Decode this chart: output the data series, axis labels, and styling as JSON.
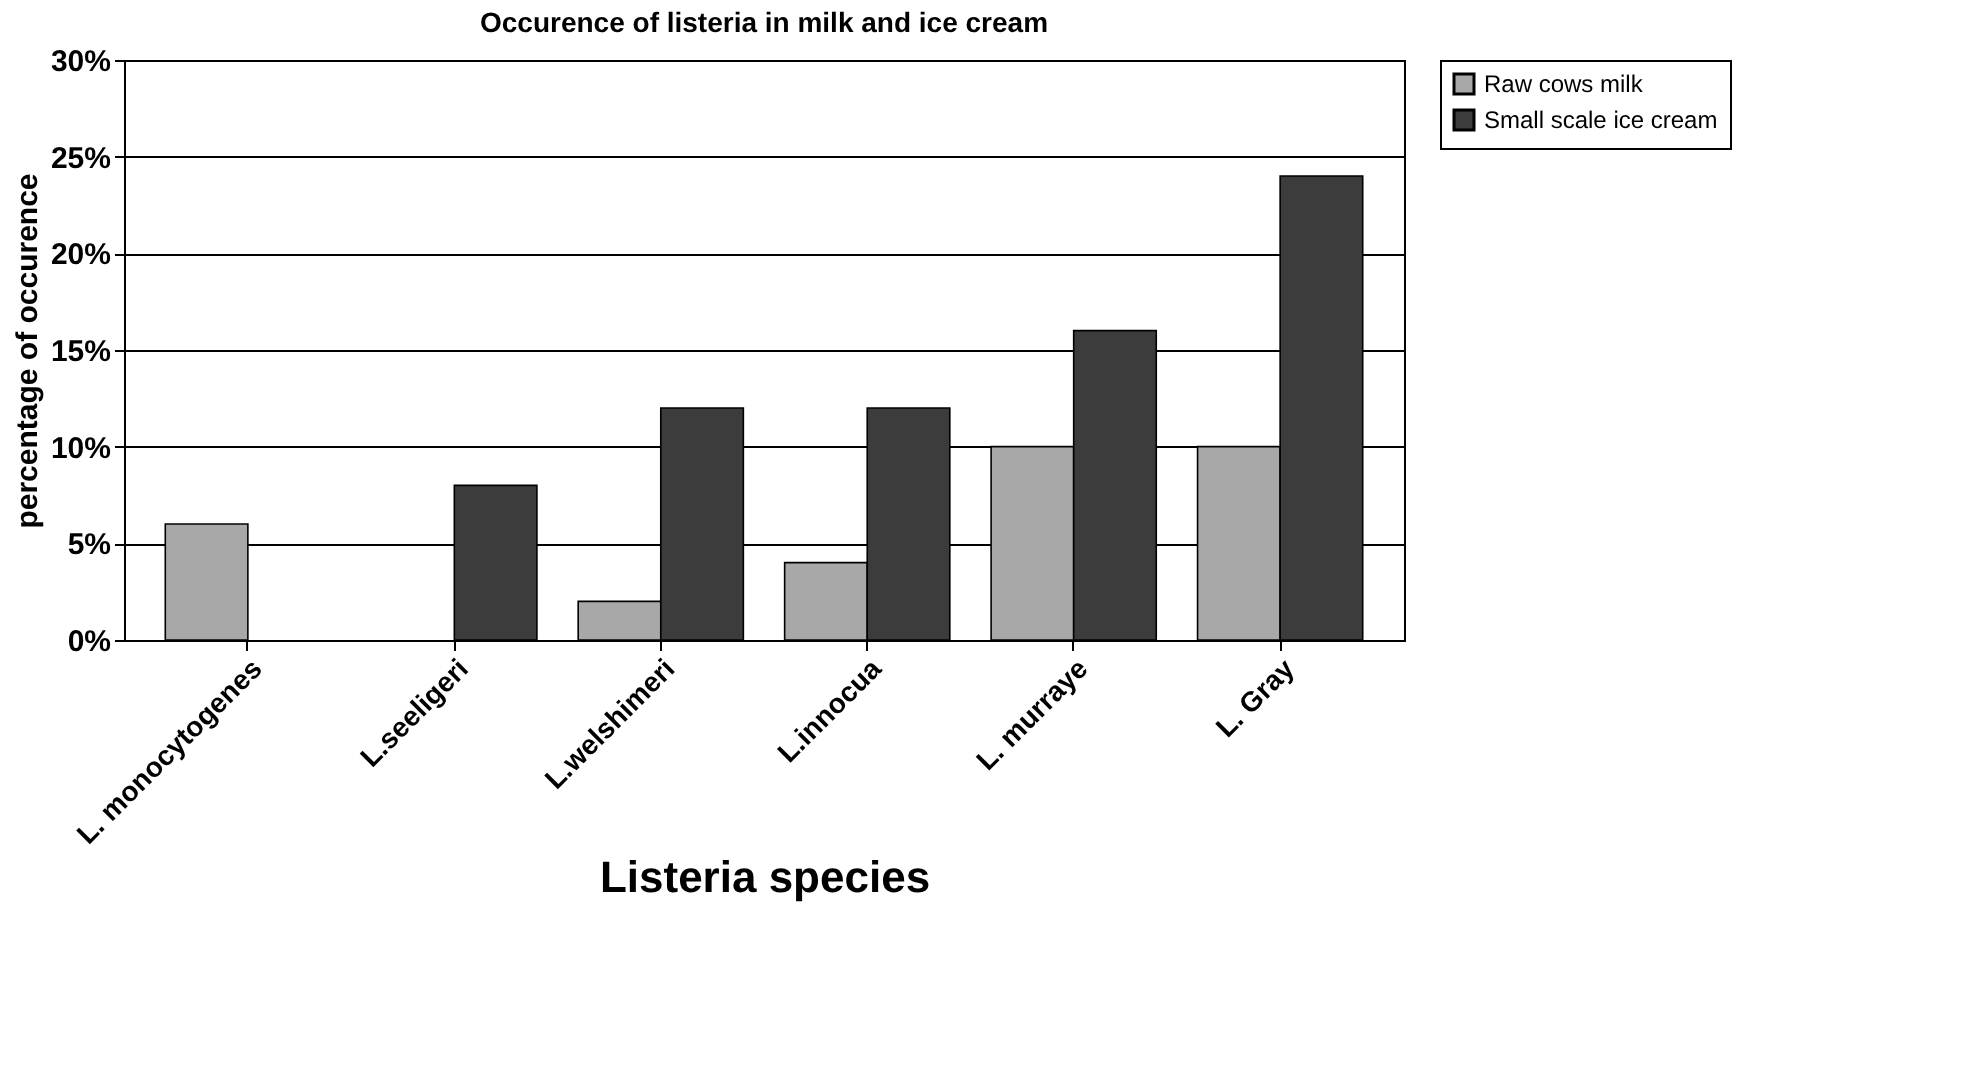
{
  "chart_data": {
    "type": "bar",
    "title": "Occurence of listeria in milk and ice cream",
    "xlabel": "Listeria species",
    "ylabel": "percentage of occurence",
    "categories": [
      "L. monocytogenes",
      "L.seeligeri",
      "L.welshimeri",
      "L.innocua",
      "L. murraye",
      "L. Gray"
    ],
    "series": [
      {
        "name": "Raw cows milk",
        "color": "#a8a8a8",
        "values": [
          6,
          null,
          2,
          4,
          10,
          10
        ]
      },
      {
        "name": "Small scale ice cream",
        "color": "#3c3c3c",
        "values": [
          null,
          8,
          12,
          12,
          16,
          24
        ]
      }
    ],
    "ylim": [
      0,
      30
    ],
    "yticks": [
      {
        "value": 0,
        "label": "0%"
      },
      {
        "value": 5,
        "label": "5%"
      },
      {
        "value": 10,
        "label": "10%"
      },
      {
        "value": 15,
        "label": "15%"
      },
      {
        "value": 20,
        "label": "20%"
      },
      {
        "value": 25,
        "label": "25%"
      },
      {
        "value": 30,
        "label": "30%"
      }
    ],
    "grid": "y",
    "legend": "right"
  }
}
